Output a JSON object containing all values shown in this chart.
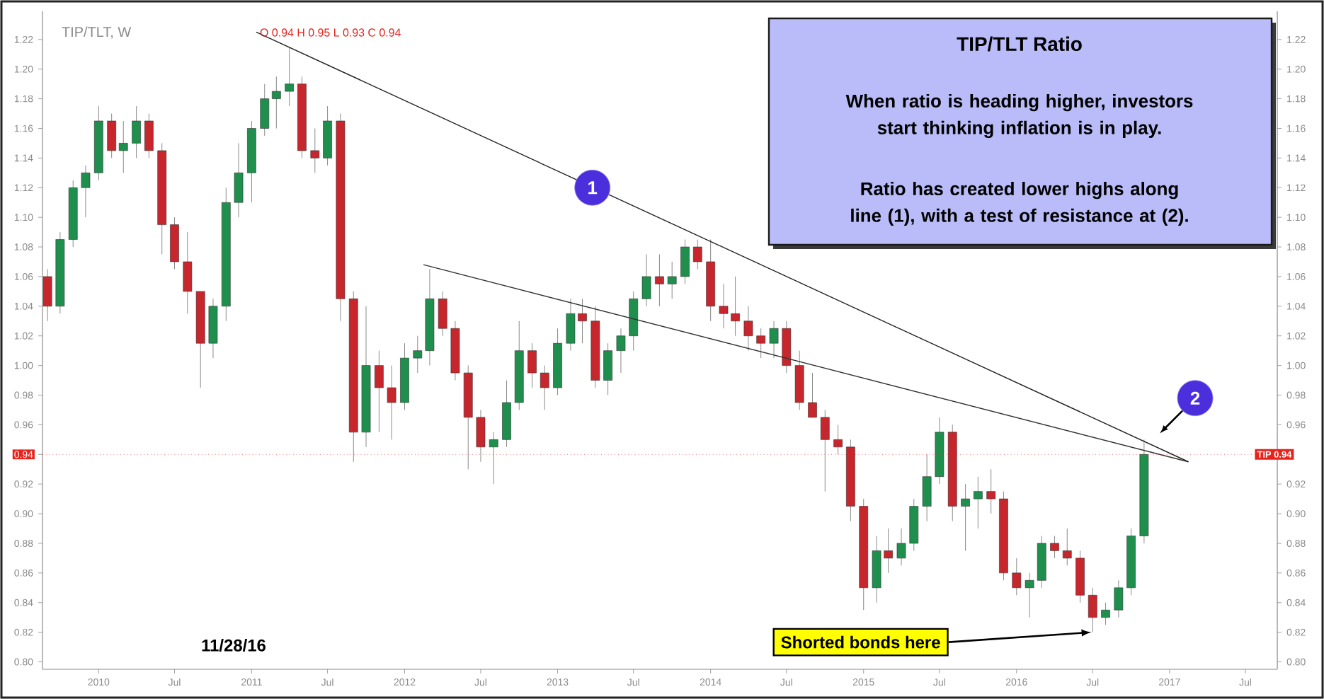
{
  "chart_data": {
    "type": "candlestick",
    "title": "TIP/TLT Ratio",
    "subtitle": "TIP/TLT, W",
    "x": [
      "2009-09",
      "2009-10",
      "2009-11",
      "2009-12",
      "2010-01",
      "2010-02",
      "2010-03",
      "2010-04",
      "2010-05",
      "2010-06",
      "2010-07",
      "2010-08",
      "2010-09",
      "2010-10",
      "2010-11",
      "2010-12",
      "2011-01",
      "2011-02",
      "2011-03",
      "2011-04",
      "2011-05",
      "2011-06",
      "2011-07",
      "2011-08",
      "2011-09",
      "2011-10",
      "2011-11",
      "2011-12",
      "2012-01",
      "2012-02",
      "2012-03",
      "2012-04",
      "2012-05",
      "2012-06",
      "2012-07",
      "2012-08",
      "2012-09",
      "2012-10",
      "2012-11",
      "2012-12",
      "2013-01",
      "2013-02",
      "2013-03",
      "2013-04",
      "2013-05",
      "2013-06",
      "2013-07",
      "2013-08",
      "2013-09",
      "2013-10",
      "2013-11",
      "2013-12",
      "2014-01",
      "2014-02",
      "2014-03",
      "2014-04",
      "2014-05",
      "2014-06",
      "2014-07",
      "2014-08",
      "2014-09",
      "2014-10",
      "2014-11",
      "2014-12",
      "2015-01",
      "2015-02",
      "2015-03",
      "2015-04",
      "2015-05",
      "2015-06",
      "2015-07",
      "2015-08",
      "2015-09",
      "2015-10",
      "2015-11",
      "2015-12",
      "2016-01",
      "2016-02",
      "2016-03",
      "2016-04",
      "2016-05",
      "2016-06",
      "2016-07",
      "2016-08",
      "2016-09",
      "2016-10",
      "2016-11"
    ],
    "ohlc": [
      [
        1.06,
        1.065,
        1.03,
        1.04
      ],
      [
        1.04,
        1.09,
        1.035,
        1.085
      ],
      [
        1.085,
        1.125,
        1.08,
        1.12
      ],
      [
        1.12,
        1.135,
        1.1,
        1.13
      ],
      [
        1.13,
        1.175,
        1.125,
        1.165
      ],
      [
        1.165,
        1.17,
        1.14,
        1.145
      ],
      [
        1.145,
        1.165,
        1.13,
        1.15
      ],
      [
        1.15,
        1.175,
        1.14,
        1.165
      ],
      [
        1.165,
        1.17,
        1.14,
        1.145
      ],
      [
        1.145,
        1.15,
        1.075,
        1.095
      ],
      [
        1.095,
        1.1,
        1.065,
        1.07
      ],
      [
        1.07,
        1.09,
        1.035,
        1.05
      ],
      [
        1.05,
        1.05,
        0.985,
        1.015
      ],
      [
        1.015,
        1.045,
        1.005,
        1.04
      ],
      [
        1.04,
        1.12,
        1.03,
        1.11
      ],
      [
        1.11,
        1.15,
        1.1,
        1.13
      ],
      [
        1.13,
        1.165,
        1.11,
        1.16
      ],
      [
        1.16,
        1.19,
        1.155,
        1.18
      ],
      [
        1.18,
        1.195,
        1.16,
        1.185
      ],
      [
        1.185,
        1.215,
        1.175,
        1.19
      ],
      [
        1.19,
        1.195,
        1.14,
        1.145
      ],
      [
        1.145,
        1.16,
        1.13,
        1.14
      ],
      [
        1.14,
        1.175,
        1.135,
        1.165
      ],
      [
        1.165,
        1.17,
        1.03,
        1.045
      ],
      [
        1.045,
        1.05,
        0.935,
        0.955
      ],
      [
        0.955,
        1.04,
        0.945,
        1.0
      ],
      [
        1.0,
        1.01,
        0.955,
        0.985
      ],
      [
        0.985,
        1.0,
        0.95,
        0.975
      ],
      [
        0.975,
        1.015,
        0.97,
        1.005
      ],
      [
        1.005,
        1.02,
        0.995,
        1.01
      ],
      [
        1.01,
        1.065,
        1.0,
        1.045
      ],
      [
        1.045,
        1.05,
        1.02,
        1.025
      ],
      [
        1.025,
        1.03,
        0.99,
        0.995
      ],
      [
        0.995,
        1.0,
        0.93,
        0.965
      ],
      [
        0.965,
        0.97,
        0.935,
        0.945
      ],
      [
        0.945,
        0.955,
        0.92,
        0.95
      ],
      [
        0.95,
        0.99,
        0.945,
        0.975
      ],
      [
        0.975,
        1.03,
        0.97,
        1.01
      ],
      [
        1.01,
        1.015,
        0.985,
        0.995
      ],
      [
        0.995,
        1.0,
        0.97,
        0.985
      ],
      [
        0.985,
        1.025,
        0.98,
        1.015
      ],
      [
        1.015,
        1.045,
        1.01,
        1.035
      ],
      [
        1.035,
        1.045,
        1.015,
        1.03
      ],
      [
        1.03,
        1.04,
        0.985,
        0.99
      ],
      [
        0.99,
        1.015,
        0.98,
        1.01
      ],
      [
        1.01,
        1.025,
        0.995,
        1.02
      ],
      [
        1.02,
        1.05,
        1.01,
        1.045
      ],
      [
        1.045,
        1.075,
        1.04,
        1.06
      ],
      [
        1.06,
        1.075,
        1.04,
        1.055
      ],
      [
        1.055,
        1.07,
        1.045,
        1.06
      ],
      [
        1.06,
        1.085,
        1.055,
        1.08
      ],
      [
        1.08,
        1.085,
        1.065,
        1.07
      ],
      [
        1.07,
        1.085,
        1.03,
        1.04
      ],
      [
        1.04,
        1.055,
        1.025,
        1.035
      ],
      [
        1.035,
        1.06,
        1.02,
        1.03
      ],
      [
        1.03,
        1.04,
        1.01,
        1.02
      ],
      [
        1.02,
        1.025,
        1.005,
        1.015
      ],
      [
        1.015,
        1.03,
        1.005,
        1.025
      ],
      [
        1.025,
        1.03,
        0.995,
        1.0
      ],
      [
        1.0,
        1.01,
        0.97,
        0.975
      ],
      [
        0.975,
        0.995,
        0.965,
        0.965
      ],
      [
        0.965,
        0.97,
        0.915,
        0.95
      ],
      [
        0.95,
        0.96,
        0.94,
        0.945
      ],
      [
        0.945,
        0.95,
        0.895,
        0.905
      ],
      [
        0.905,
        0.91,
        0.835,
        0.85
      ],
      [
        0.85,
        0.885,
        0.84,
        0.875
      ],
      [
        0.875,
        0.89,
        0.86,
        0.87
      ],
      [
        0.87,
        0.89,
        0.865,
        0.88
      ],
      [
        0.88,
        0.91,
        0.875,
        0.905
      ],
      [
        0.905,
        0.94,
        0.895,
        0.925
      ],
      [
        0.925,
        0.965,
        0.92,
        0.955
      ],
      [
        0.955,
        0.96,
        0.895,
        0.905
      ],
      [
        0.905,
        0.92,
        0.875,
        0.91
      ],
      [
        0.91,
        0.925,
        0.89,
        0.915
      ],
      [
        0.915,
        0.93,
        0.9,
        0.91
      ],
      [
        0.91,
        0.915,
        0.855,
        0.86
      ],
      [
        0.86,
        0.87,
        0.845,
        0.85
      ],
      [
        0.85,
        0.86,
        0.83,
        0.855
      ],
      [
        0.855,
        0.885,
        0.85,
        0.88
      ],
      [
        0.88,
        0.885,
        0.87,
        0.875
      ],
      [
        0.875,
        0.89,
        0.865,
        0.87
      ],
      [
        0.87,
        0.875,
        0.84,
        0.845
      ],
      [
        0.845,
        0.85,
        0.82,
        0.83
      ],
      [
        0.83,
        0.84,
        0.825,
        0.835
      ],
      [
        0.835,
        0.855,
        0.83,
        0.85
      ],
      [
        0.85,
        0.89,
        0.845,
        0.885
      ],
      [
        0.885,
        0.95,
        0.88,
        0.94
      ]
    ],
    "series": [
      {
        "type": "line",
        "x": [
          "2011-01-12",
          "2017-02-15"
        ],
        "values": [
          1.225,
          0.935
        ],
        "color": "#222222"
      },
      {
        "type": "line",
        "x": [
          "2012-02-15",
          "2017-02-15"
        ],
        "values": [
          1.068,
          0.935
        ],
        "color": "#333333"
      }
    ],
    "xlim": [
      "2009-08-20",
      "2017-09-15"
    ],
    "xticks": [
      {
        "value": "2010-01-01",
        "label": "2010"
      },
      {
        "value": "2010-07-01",
        "label": "Jul"
      },
      {
        "value": "2011-01-01",
        "label": "2011"
      },
      {
        "value": "2011-07-01",
        "label": "Jul"
      },
      {
        "value": "2012-01-01",
        "label": "2012"
      },
      {
        "value": "2012-07-01",
        "label": "Jul"
      },
      {
        "value": "2013-01-01",
        "label": "2013"
      },
      {
        "value": "2013-07-01",
        "label": "Jul"
      },
      {
        "value": "2014-01-01",
        "label": "2014"
      },
      {
        "value": "2014-07-01",
        "label": "Jul"
      },
      {
        "value": "2015-01-01",
        "label": "2015"
      },
      {
        "value": "2015-07-01",
        "label": "Jul"
      },
      {
        "value": "2016-01-01",
        "label": "2016"
      },
      {
        "value": "2016-07-01",
        "label": "Jul"
      },
      {
        "value": "2017-01-01",
        "label": "2017"
      },
      {
        "value": "2017-07-01",
        "label": "Jul"
      }
    ],
    "ylim": [
      0.795,
      1.239
    ],
    "yticks": [
      {
        "value": 0.8,
        "label": "0.80"
      },
      {
        "value": 0.82,
        "label": "0.82"
      },
      {
        "value": 0.84,
        "label": "0.84"
      },
      {
        "value": 0.86,
        "label": "0.86"
      },
      {
        "value": 0.88,
        "label": "0.88"
      },
      {
        "value": 0.9,
        "label": "0.90"
      },
      {
        "value": 0.92,
        "label": "0.92"
      },
      {
        "value": 0.94,
        "label": "0.94"
      },
      {
        "value": 0.96,
        "label": "0.96"
      },
      {
        "value": 0.98,
        "label": "0.98"
      },
      {
        "value": 1.0,
        "label": "1.00"
      },
      {
        "value": 1.02,
        "label": "1.02"
      },
      {
        "value": 1.04,
        "label": "1.04"
      },
      {
        "value": 1.06,
        "label": "1.06"
      },
      {
        "value": 1.08,
        "label": "1.08"
      },
      {
        "value": 1.1,
        "label": "1.10"
      },
      {
        "value": 1.12,
        "label": "1.12"
      },
      {
        "value": 1.14,
        "label": "1.14"
      },
      {
        "value": 1.16,
        "label": "1.16"
      },
      {
        "value": 1.18,
        "label": "1.18"
      },
      {
        "value": 1.2,
        "label": "1.20"
      },
      {
        "value": 1.22,
        "label": "1.22"
      }
    ],
    "y2lim": [
      0.795,
      1.239
    ],
    "y2ticks": [
      {
        "value": 0.8,
        "label": "0.80"
      },
      {
        "value": 0.82,
        "label": "0.82"
      },
      {
        "value": 0.84,
        "label": "0.84"
      },
      {
        "value": 0.86,
        "label": "0.86"
      },
      {
        "value": 0.88,
        "label": "0.88"
      },
      {
        "value": 0.9,
        "label": "0.90"
      },
      {
        "value": 0.92,
        "label": "0.92"
      },
      {
        "value": 0.94,
        "label": null
      },
      {
        "value": 0.96,
        "label": "0.96"
      },
      {
        "value": 0.98,
        "label": "0.98"
      },
      {
        "value": 1.0,
        "label": "1.00"
      },
      {
        "value": 1.02,
        "label": "1.02"
      },
      {
        "value": 1.04,
        "label": "1.04"
      },
      {
        "value": 1.06,
        "label": "1.06"
      },
      {
        "value": 1.08,
        "label": "1.08"
      },
      {
        "value": 1.1,
        "label": "1.10"
      },
      {
        "value": 1.12,
        "label": "1.12"
      },
      {
        "value": 1.14,
        "label": "1.14"
      },
      {
        "value": 1.16,
        "label": "1.16"
      },
      {
        "value": 1.18,
        "label": "1.18"
      },
      {
        "value": 1.2,
        "label": "1.20"
      },
      {
        "value": 1.22,
        "label": "1.22"
      }
    ],
    "ref_lines": [
      {
        "axis": "y",
        "value": 0.94,
        "label": "TIP 0.94",
        "color": "#e8231c"
      }
    ],
    "annotations": [
      "O 0.94 H 0.95 L 0.93 C 0.94",
      "When ratio is heading higher, investors start thinking inflation is in play.",
      "Ratio has created lower highs along line (1), with a test of resistance at (2).",
      "11/28/16",
      {
        "text": "Shorted bonds here",
        "x": "2016-07-05",
        "y": 0.82
      },
      {
        "text": "1",
        "x": "2013-03-25",
        "y": 1.12
      },
      {
        "text": "2",
        "x": "2017-03-03",
        "y": 0.978
      }
    ]
  }
}
